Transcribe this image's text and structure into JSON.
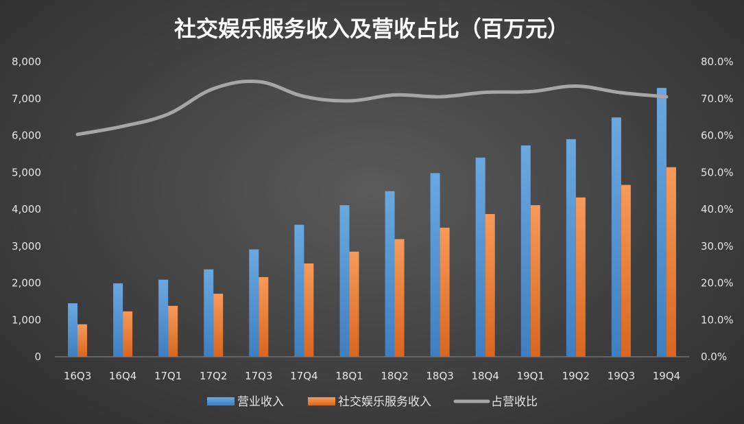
{
  "chart_data": {
    "type": "bar",
    "title": "社交娱乐服务收入及营收占比（百万元）",
    "categories": [
      "16Q3",
      "16Q4",
      "17Q1",
      "17Q2",
      "17Q3",
      "17Q4",
      "18Q1",
      "18Q2",
      "18Q3",
      "18Q4",
      "19Q1",
      "19Q2",
      "19Q3",
      "19Q4"
    ],
    "series": [
      {
        "name": "营业收入",
        "type": "bar",
        "axis": "left",
        "color": "#5b9bd5",
        "values": [
          1450,
          1990,
          2090,
          2370,
          2910,
          3580,
          4110,
          4490,
          4980,
          5400,
          5730,
          5900,
          6490,
          7290
        ]
      },
      {
        "name": "社交娱乐服务收入",
        "type": "bar",
        "axis": "left",
        "color": "#ed7d31",
        "values": [
          880,
          1230,
          1380,
          1710,
          2160,
          2530,
          2850,
          3190,
          3500,
          3870,
          4110,
          4320,
          4660,
          5140
        ]
      },
      {
        "name": "占营收比",
        "type": "line",
        "axis": "right",
        "color": "#a5a5a5",
        "values": [
          60.3,
          62.5,
          65.8,
          72.7,
          74.6,
          70.6,
          69.4,
          71.0,
          70.5,
          71.7,
          71.9,
          73.4,
          71.6,
          70.5
        ]
      }
    ],
    "y_left": {
      "min": 0,
      "max": 8000,
      "ticks": [
        "0",
        "1,000",
        "2,000",
        "3,000",
        "4,000",
        "5,000",
        "6,000",
        "7,000",
        "8,000"
      ]
    },
    "y_right": {
      "min": 0,
      "max": 80,
      "ticks": [
        "0.0%",
        "10.0%",
        "20.0%",
        "30.0%",
        "40.0%",
        "50.0%",
        "60.0%",
        "70.0%",
        "80.0%"
      ]
    },
    "grid": false,
    "legend_position": "bottom"
  }
}
